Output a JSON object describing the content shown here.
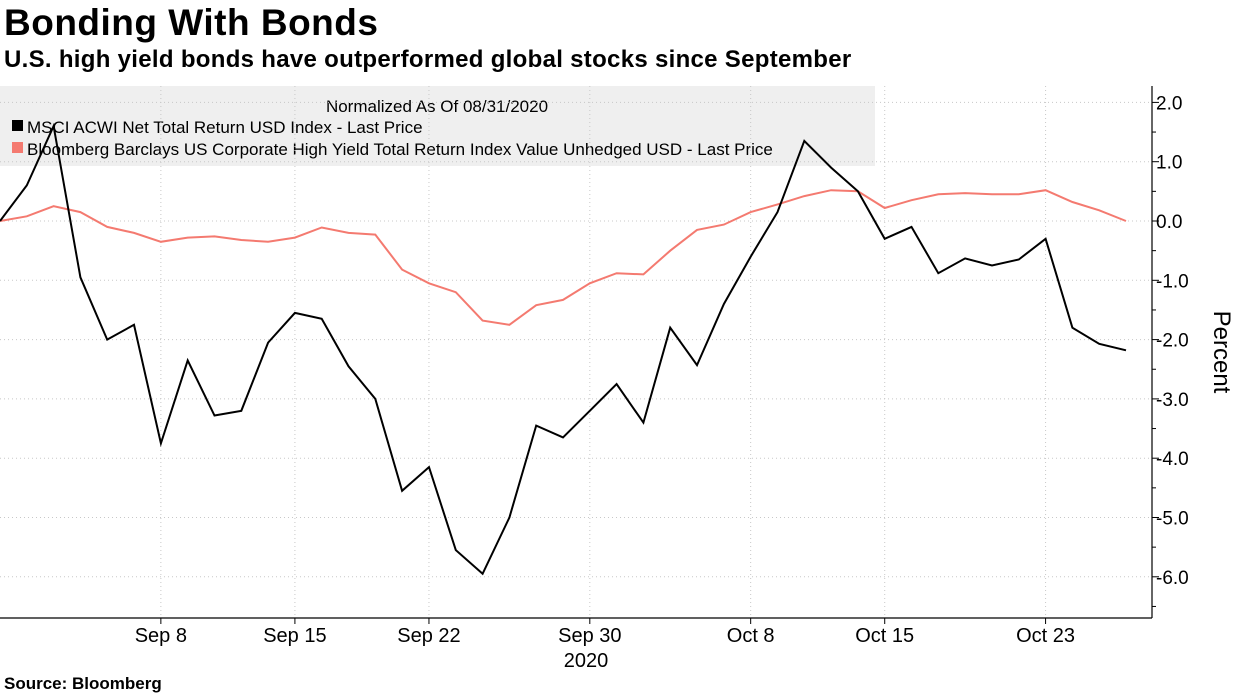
{
  "title": "Bonding With Bonds",
  "subtitle": "U.S. high yield bonds have outperformed global stocks since September",
  "source": "Source: Bloomberg",
  "chart_data": {
    "type": "line",
    "legend_title": "Normalized As Of 08/31/2020",
    "legend_position": "top-left",
    "ylabel": "Percent",
    "xlabel": "2020",
    "ylim": [
      -6.7,
      2.2
    ],
    "y_ticks": [
      2.0,
      1.0,
      0.0,
      -1.0,
      -2.0,
      -3.0,
      -4.0,
      -5.0,
      -6.0
    ],
    "y_tick_labels": [
      "2.0",
      "1.0",
      "0.0",
      "-1.0",
      "-2.0",
      "-3.0",
      "-4.0",
      "-5.0",
      "-6.0"
    ],
    "x_ticks": [
      {
        "label": "Sep 8",
        "index": 6
      },
      {
        "label": "Sep 15",
        "index": 11
      },
      {
        "label": "Sep 22",
        "index": 16
      },
      {
        "label": "Sep 30",
        "index": 22
      },
      {
        "label": "Oct 8",
        "index": 28
      },
      {
        "label": "Oct 15",
        "index": 33
      },
      {
        "label": "Oct 23",
        "index": 39
      }
    ],
    "x_count": 43,
    "colors": {
      "msci": "#000000",
      "bloomberg": "#f47a70",
      "legend_bg": "#efefef"
    },
    "series": [
      {
        "name": "MSCI ACWI Net Total Return USD Index - Last Price",
        "key": "msci",
        "values": [
          0.0,
          0.6,
          1.6,
          -0.95,
          -2.0,
          -1.75,
          -3.75,
          -2.35,
          -3.28,
          -3.2,
          -2.05,
          -1.55,
          -1.65,
          -2.45,
          -3.0,
          -4.55,
          -4.15,
          -5.55,
          -5.95,
          -5.0,
          -3.45,
          -3.65,
          -3.2,
          -2.75,
          -3.4,
          -1.8,
          -2.43,
          -1.4,
          -0.6,
          0.15,
          1.35,
          0.9,
          0.5,
          -0.3,
          -0.1,
          -0.88,
          -0.63,
          -0.75,
          -0.65,
          -0.3,
          -1.8,
          -2.07,
          -2.18
        ]
      },
      {
        "name": "Bloomberg Barclays US Corporate High Yield Total Return Index Value Unhedged USD - Last Price",
        "key": "bloomberg",
        "values": [
          0.0,
          0.08,
          0.25,
          0.15,
          -0.1,
          -0.2,
          -0.35,
          -0.28,
          -0.26,
          -0.32,
          -0.35,
          -0.28,
          -0.11,
          -0.2,
          -0.23,
          -0.82,
          -1.05,
          -1.2,
          -1.68,
          -1.75,
          -1.42,
          -1.33,
          -1.05,
          -0.88,
          -0.9,
          -0.5,
          -0.15,
          -0.06,
          0.15,
          0.28,
          0.42,
          0.52,
          0.5,
          0.22,
          0.35,
          0.45,
          0.47,
          0.45,
          0.45,
          0.52,
          0.32,
          0.18,
          0.0
        ]
      }
    ]
  }
}
